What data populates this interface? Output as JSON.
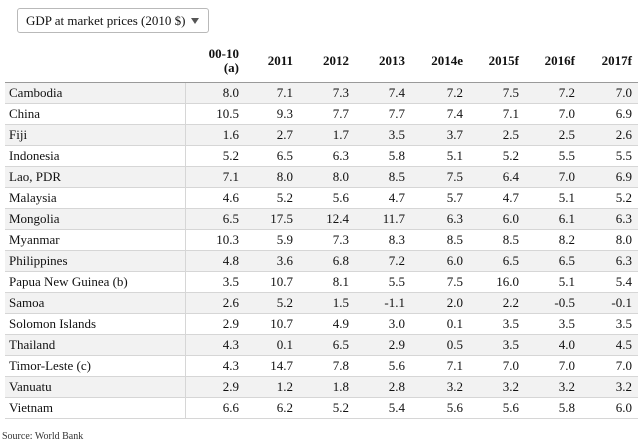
{
  "dropdown": {
    "label": "GDP at market prices (2010 $)",
    "icon": "chevron-down-icon"
  },
  "table": {
    "headers": [
      "",
      "00-10\n(a)",
      "2011",
      "2012",
      "2013",
      "2014e",
      "2015f",
      "2016f",
      "2017f"
    ],
    "header_line1": [
      "",
      "00-10",
      "2011",
      "2012",
      "2013",
      "2014e",
      "2015f",
      "2016f",
      "2017f"
    ],
    "header_line2": [
      "",
      "(a)",
      "",
      "",
      "",
      "",
      "",
      "",
      ""
    ],
    "rows": [
      [
        "Cambodia",
        "8.0",
        "7.1",
        "7.3",
        "7.4",
        "7.2",
        "7.5",
        "7.2",
        "7.0"
      ],
      [
        "China",
        "10.5",
        "9.3",
        "7.7",
        "7.7",
        "7.4",
        "7.1",
        "7.0",
        "6.9"
      ],
      [
        "Fiji",
        "1.6",
        "2.7",
        "1.7",
        "3.5",
        "3.7",
        "2.5",
        "2.5",
        "2.6"
      ],
      [
        "Indonesia",
        "5.2",
        "6.5",
        "6.3",
        "5.8",
        "5.1",
        "5.2",
        "5.5",
        "5.5"
      ],
      [
        "Lao, PDR",
        "7.1",
        "8.0",
        "8.0",
        "8.5",
        "7.5",
        "6.4",
        "7.0",
        "6.9"
      ],
      [
        "Malaysia",
        "4.6",
        "5.2",
        "5.6",
        "4.7",
        "5.7",
        "4.7",
        "5.1",
        "5.2"
      ],
      [
        "Mongolia",
        "6.5",
        "17.5",
        "12.4",
        "11.7",
        "6.3",
        "6.0",
        "6.1",
        "6.3"
      ],
      [
        "Myanmar",
        "10.3",
        "5.9",
        "7.3",
        "8.3",
        "8.5",
        "8.5",
        "8.2",
        "8.0"
      ],
      [
        "Philippines",
        "4.8",
        "3.6",
        "6.8",
        "7.2",
        "6.0",
        "6.5",
        "6.5",
        "6.3"
      ],
      [
        "Papua New Guinea (b)",
        "3.5",
        "10.7",
        "8.1",
        "5.5",
        "7.5",
        "16.0",
        "5.1",
        "5.4"
      ],
      [
        "Samoa",
        "2.6",
        "5.2",
        "1.5",
        "-1.1",
        "2.0",
        "2.2",
        "-0.5",
        "-0.1"
      ],
      [
        "Solomon Islands",
        "2.9",
        "10.7",
        "4.9",
        "3.0",
        "0.1",
        "3.5",
        "3.5",
        "3.5"
      ],
      [
        "Thailand",
        "4.3",
        "0.1",
        "6.5",
        "2.9",
        "0.5",
        "3.5",
        "4.0",
        "4.5"
      ],
      [
        "Timor-Leste (c)",
        "4.3",
        "14.7",
        "7.8",
        "5.6",
        "7.1",
        "7.0",
        "7.0",
        "7.0"
      ],
      [
        "Vanuatu",
        "2.9",
        "1.2",
        "1.8",
        "2.8",
        "3.2",
        "3.2",
        "3.2",
        "3.2"
      ],
      [
        "Vietnam",
        "6.6",
        "6.2",
        "5.2",
        "5.4",
        "5.6",
        "5.6",
        "5.8",
        "6.0"
      ]
    ]
  },
  "footer": {
    "source": "Source: World Bank"
  }
}
